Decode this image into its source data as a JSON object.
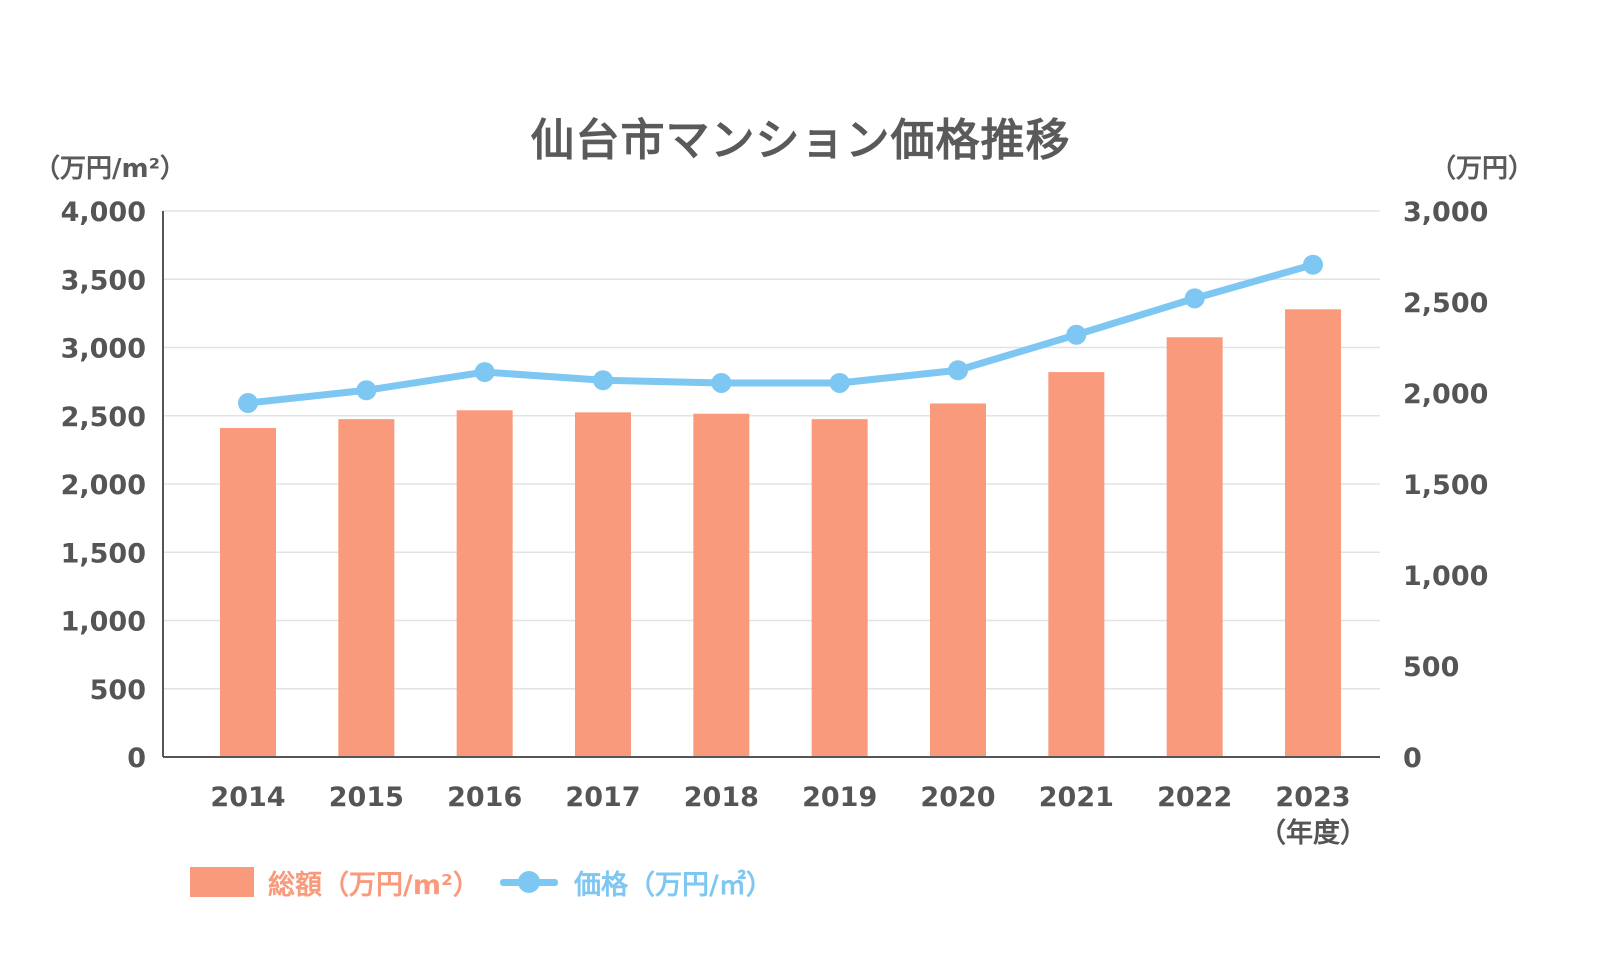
{
  "chart_data": {
    "type": "bar+line",
    "title": "仙台市マンション価格推移",
    "categories": [
      "2014",
      "2015",
      "2016",
      "2017",
      "2018",
      "2019",
      "2020",
      "2021",
      "2022",
      "2023"
    ],
    "x_unit_label": "（年度）",
    "series": [
      {
        "name": "総額（万円/m²）",
        "type": "bar",
        "axis": "left",
        "color": "#fa9a7d",
        "values": [
          2410,
          2475,
          2540,
          2525,
          2515,
          2475,
          2590,
          2820,
          3075,
          3280
        ]
      },
      {
        "name": "価格（万円/㎡）",
        "type": "line",
        "axis": "right",
        "color": "#7ec7f2",
        "values": [
          1945,
          2015,
          2115,
          2070,
          2055,
          2055,
          2125,
          2320,
          2520,
          2705
        ]
      }
    ],
    "y_left": {
      "label": "（万円/m²）",
      "range": [
        0,
        4000
      ],
      "ticks": [
        "0",
        "500",
        "1,000",
        "1,500",
        "2,000",
        "2,500",
        "3,000",
        "3,500",
        "4,000"
      ],
      "tick_values": [
        0,
        500,
        1000,
        1500,
        2000,
        2500,
        3000,
        3500,
        4000
      ]
    },
    "y_right": {
      "label": "（万円）",
      "range": [
        0,
        3000
      ],
      "ticks": [
        "0",
        "500",
        "1,000",
        "1,500",
        "2,000",
        "2,500",
        "3,000"
      ],
      "tick_values": [
        0,
        500,
        1000,
        1500,
        2000,
        2500,
        3000
      ]
    },
    "grid": true,
    "legend_position": "bottom-left"
  },
  "legend": {
    "bar_label": "総額（万円/m²）",
    "line_label": "価格（万円/㎡）"
  }
}
